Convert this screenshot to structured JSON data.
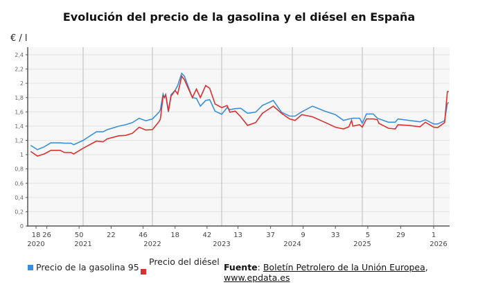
{
  "chart_data": {
    "type": "line",
    "title": "Evolución del precio de la gasolina y el diésel en España",
    "ylabel": "€ / l",
    "ylim": [
      0,
      2.5
    ],
    "yticks": [
      "0",
      "0,2",
      "0,4",
      "0,6",
      "0,8",
      "1",
      "1,2",
      "1,4",
      "1,6",
      "1,8",
      "2",
      "2,2",
      "2,4"
    ],
    "xticks": [
      {
        "week": "18",
        "year": "2020",
        "at": "2020-W18"
      },
      {
        "week": "26",
        "year": "",
        "at": "2020-W26"
      },
      {
        "week": "50",
        "year": "",
        "at": "2020-W50"
      },
      {
        "week": "22",
        "year": "",
        "at": "2021-W22"
      },
      {
        "week": "46",
        "year": "",
        "at": "2021-W46"
      },
      {
        "week": "18",
        "year": "",
        "at": "2022-W18"
      },
      {
        "week": "42",
        "year": "",
        "at": "2022-W42"
      },
      {
        "week": "13",
        "year": "",
        "at": "2023-W13"
      },
      {
        "week": "37",
        "year": "",
        "at": "2023-W37"
      },
      {
        "week": "9",
        "year": "",
        "at": "2024-W09"
      },
      {
        "week": "33",
        "year": "",
        "at": "2024-W33"
      },
      {
        "week": "5",
        "year": "",
        "at": "2025-W05"
      },
      {
        "week": "29",
        "year": "",
        "at": "2025-W29"
      },
      {
        "week": "1",
        "year": "",
        "at": "2026-W01"
      }
    ],
    "year_labels": [
      "2021",
      "2022",
      "2023",
      "2024",
      "2025",
      "2026"
    ],
    "grid": true,
    "legend": "bottom-left",
    "series": [
      {
        "name": "Precio de la gasolina 95",
        "color": "#3a8fd6",
        "x": [
          "2020-W14",
          "2020-W19",
          "2020-W24",
          "2020-W29",
          "2020-W36",
          "2020-W39",
          "2020-W44",
          "2020-W46",
          "2021-W01",
          "2021-W11",
          "2021-W16",
          "2021-W19",
          "2021-W28",
          "2021-W33",
          "2021-W38",
          "2021-W43",
          "2021-W48",
          "2022-W01",
          "2022-W06",
          "2022-W07",
          "2022-W09",
          "2022-W10",
          "2022-W11",
          "2022-W13",
          "2022-W15",
          "2022-W18",
          "2022-W20",
          "2022-W23",
          "2022-W25",
          "2022-W31",
          "2022-W34",
          "2022-W37",
          "2022-W41",
          "2022-W44",
          "2022-W48",
          "2023-W01",
          "2023-W05",
          "2023-W07",
          "2023-W11",
          "2023-W15",
          "2023-W20",
          "2023-W26",
          "2023-W31",
          "2023-W39",
          "2023-W45",
          "2023-W51",
          "2024-W03",
          "2024-W08",
          "2024-W16",
          "2024-W25",
          "2024-W33",
          "2024-W39",
          "2024-W43",
          "2024-W46",
          "2024-W51",
          "2025-W01",
          "2025-W04",
          "2025-W09",
          "2025-W12",
          "2025-W20",
          "2025-W25",
          "2025-W27",
          "2025-W35",
          "2025-W43",
          "2025-W47",
          "2026-W01",
          "2026-W04",
          "2026-W09",
          "2026-W11",
          "2026-W12"
        ],
        "values": [
          1.13,
          1.07,
          1.11,
          1.165,
          1.165,
          1.16,
          1.16,
          1.14,
          1.2,
          1.32,
          1.32,
          1.35,
          1.4,
          1.42,
          1.45,
          1.51,
          1.475,
          1.5,
          1.595,
          1.63,
          1.85,
          1.8,
          1.84,
          1.595,
          1.84,
          1.9,
          1.97,
          2.14,
          2.1,
          1.8,
          1.79,
          1.68,
          1.76,
          1.77,
          1.61,
          1.565,
          1.66,
          1.63,
          1.645,
          1.65,
          1.58,
          1.595,
          1.69,
          1.76,
          1.595,
          1.54,
          1.54,
          1.6,
          1.68,
          1.61,
          1.56,
          1.48,
          1.5,
          1.51,
          1.51,
          1.44,
          1.57,
          1.57,
          1.51,
          1.455,
          1.455,
          1.5,
          1.48,
          1.46,
          1.49,
          1.43,
          1.43,
          1.475,
          1.72,
          1.73
        ]
      },
      {
        "name": "Precio del diésel",
        "color": "#d93030",
        "x": [
          "2020-W14",
          "2020-W19",
          "2020-W24",
          "2020-W29",
          "2020-W36",
          "2020-W39",
          "2020-W44",
          "2020-W46",
          "2021-W01",
          "2021-W11",
          "2021-W16",
          "2021-W19",
          "2021-W28",
          "2021-W33",
          "2021-W38",
          "2021-W43",
          "2021-W48",
          "2022-W01",
          "2022-W06",
          "2022-W07",
          "2022-W09",
          "2022-W10",
          "2022-W11",
          "2022-W13",
          "2022-W15",
          "2022-W18",
          "2022-W20",
          "2022-W23",
          "2022-W25",
          "2022-W31",
          "2022-W34",
          "2022-W37",
          "2022-W41",
          "2022-W44",
          "2022-W48",
          "2023-W01",
          "2023-W05",
          "2023-W07",
          "2023-W11",
          "2023-W15",
          "2023-W20",
          "2023-W26",
          "2023-W31",
          "2023-W39",
          "2023-W45",
          "2023-W51",
          "2024-W03",
          "2024-W08",
          "2024-W16",
          "2024-W25",
          "2024-W33",
          "2024-W39",
          "2024-W43",
          "2024-W45",
          "2024-W46",
          "2024-W51",
          "2025-W01",
          "2025-W04",
          "2025-W09",
          "2025-W12",
          "2025-W13",
          "2025-W20",
          "2025-W25",
          "2025-W27",
          "2025-W35",
          "2025-W43",
          "2025-W47",
          "2026-W01",
          "2026-W04",
          "2026-W09",
          "2026-W11",
          "2026-W12"
        ],
        "values": [
          1.045,
          0.98,
          1.01,
          1.06,
          1.06,
          1.03,
          1.03,
          1.01,
          1.09,
          1.19,
          1.18,
          1.22,
          1.265,
          1.27,
          1.3,
          1.385,
          1.345,
          1.35,
          1.465,
          1.5,
          1.82,
          1.8,
          1.84,
          1.61,
          1.82,
          1.9,
          1.85,
          2.1,
          2.05,
          1.8,
          1.92,
          1.8,
          1.97,
          1.93,
          1.71,
          1.66,
          1.69,
          1.595,
          1.61,
          1.53,
          1.41,
          1.45,
          1.58,
          1.68,
          1.58,
          1.5,
          1.48,
          1.56,
          1.53,
          1.455,
          1.385,
          1.36,
          1.39,
          1.48,
          1.4,
          1.42,
          1.385,
          1.5,
          1.5,
          1.49,
          1.44,
          1.37,
          1.36,
          1.42,
          1.41,
          1.39,
          1.455,
          1.385,
          1.38,
          1.45,
          1.885,
          1.885
        ]
      }
    ]
  },
  "legend": {
    "gasoline": "Precio de la gasolina 95",
    "diesel": "Precio del diésel"
  },
  "source": {
    "label": "Fuente",
    "sep1": ": ",
    "link1": "Boletín Petrolero de la Unión Europea",
    "sep2": ", ",
    "link2": "www.epdata.es"
  }
}
